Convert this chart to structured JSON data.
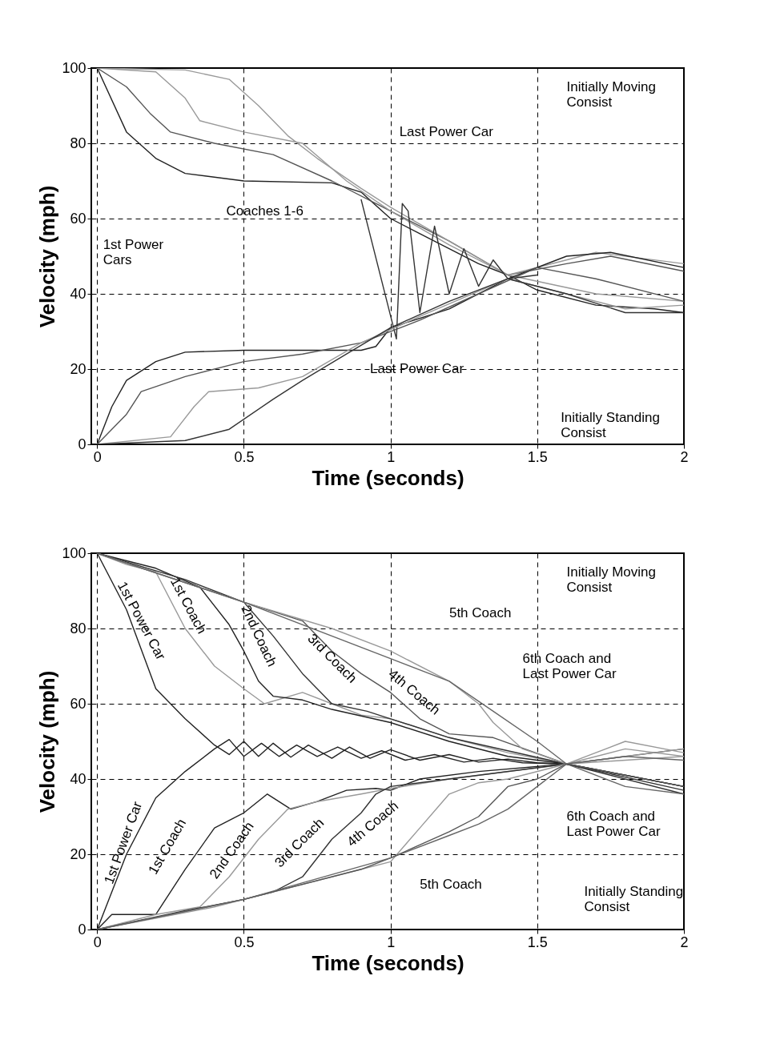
{
  "chart_data": [
    {
      "type": "line",
      "xlabel": "Time (seconds)",
      "ylabel": "Velocity (mph)",
      "xlim": [
        -0.02,
        2
      ],
      "ylim": [
        0,
        100
      ],
      "xticks": [
        0,
        0.5,
        1,
        1.5,
        2
      ],
      "yticks": [
        0,
        20,
        40,
        60,
        80,
        100
      ],
      "grid": true,
      "legend": false,
      "line_style": "solid",
      "marker": "none",
      "series": [
        {
          "color": "#222222",
          "x": [
            0,
            0.1,
            0.2,
            0.3,
            0.5,
            0.8,
            0.9,
            1.0,
            1.1,
            1.2,
            1.3,
            1.4,
            1.5,
            1.7,
            1.9,
            2
          ],
          "values": [
            100,
            83,
            76,
            72,
            70,
            69.5,
            67,
            60,
            56,
            52,
            48,
            45,
            41,
            37,
            36,
            35
          ]
        },
        {
          "color": "#555555",
          "x": [
            0,
            0.1,
            0.18,
            0.25,
            0.4,
            0.6,
            0.8,
            1.0,
            1.2,
            1.4,
            1.6,
            1.75,
            2
          ],
          "values": [
            100,
            95,
            88,
            83,
            80,
            77,
            70,
            62,
            54,
            45,
            48,
            50,
            46
          ]
        },
        {
          "color": "#999999",
          "x": [
            0,
            0.2,
            0.3,
            0.35,
            0.5,
            0.7,
            0.85,
            1.0,
            1.2,
            1.4,
            1.7,
            2
          ],
          "values": [
            100,
            99,
            92,
            86,
            83,
            80,
            70,
            62,
            53,
            45,
            40,
            38
          ]
        },
        {
          "color": "#999999",
          "x": [
            0,
            0.3,
            0.45,
            0.55,
            0.65,
            0.75,
            0.9,
            1.0,
            1.2,
            1.4,
            1.7,
            2
          ],
          "values": [
            100,
            99.5,
            97,
            90,
            82,
            76,
            68,
            63,
            54,
            45,
            51,
            48
          ]
        },
        {
          "color": "#333333",
          "x": [
            0.9,
            1.02,
            1.04,
            1.06,
            1.1,
            1.15,
            1.2,
            1.25,
            1.3,
            1.35,
            1.4,
            1.5
          ],
          "values": [
            65,
            28,
            64,
            62,
            35,
            58,
            40,
            52,
            42,
            49,
            44,
            45
          ]
        },
        {
          "color": "#222222",
          "x": [
            0,
            0.05,
            0.1,
            0.2,
            0.3,
            0.5,
            0.9,
            0.95,
            1.0,
            1.2,
            1.4,
            1.6,
            1.75,
            2
          ],
          "values": [
            0,
            10,
            17,
            22,
            24.5,
            25,
            25,
            26,
            31,
            36,
            44,
            50,
            51,
            47
          ]
        },
        {
          "color": "#555555",
          "x": [
            0,
            0.1,
            0.15,
            0.3,
            0.5,
            0.7,
            0.9,
            1.1,
            1.3,
            1.5,
            1.7,
            2
          ],
          "values": [
            0,
            8,
            14,
            18,
            22,
            24,
            27,
            33,
            40,
            47,
            44,
            38
          ]
        },
        {
          "color": "#999999",
          "x": [
            0,
            0.25,
            0.33,
            0.38,
            0.55,
            0.7,
            0.9,
            1.1,
            1.4,
            1.6,
            1.8,
            2
          ],
          "values": [
            0,
            2,
            10,
            14,
            15,
            18,
            27,
            34,
            44,
            40,
            36,
            37
          ]
        },
        {
          "color": "#333333",
          "x": [
            0,
            0.3,
            0.45,
            0.6,
            0.7,
            0.85,
            1.0,
            1.2,
            1.4,
            1.6,
            1.8,
            2
          ],
          "values": [
            0,
            1,
            4,
            12,
            17,
            24,
            31,
            38,
            44,
            40,
            35,
            35
          ]
        }
      ],
      "annotations": [
        "Initially Moving\nConsist",
        "Last Power Car",
        "Coaches 1-6",
        "1st Power\nCars",
        "Last Power Car",
        "Initially Standing\nConsist"
      ]
    },
    {
      "type": "line",
      "xlabel": "Time (seconds)",
      "ylabel": "Velocity (mph)",
      "xlim": [
        -0.02,
        2
      ],
      "ylim": [
        0,
        100
      ],
      "xticks": [
        0,
        0.5,
        1,
        1.5,
        2
      ],
      "yticks": [
        0,
        20,
        40,
        60,
        80,
        100
      ],
      "grid": true,
      "legend": false,
      "line_style": "solid",
      "marker": "none",
      "series": [
        {
          "color": "#222222",
          "x": [
            0,
            0.1,
            0.2,
            0.3,
            0.4,
            0.45,
            0.5,
            0.55,
            0.6,
            0.66,
            0.72,
            0.8,
            0.86,
            0.93,
            1.0,
            1.1,
            1.2,
            1.3,
            1.4,
            1.5,
            1.6
          ],
          "values": [
            100,
            85,
            64,
            56,
            49,
            46.5,
            50,
            46,
            49.5,
            45.8,
            49,
            45.5,
            48.5,
            45.5,
            47.8,
            45,
            46.5,
            44.5,
            45.3,
            44.3,
            44
          ]
        },
        {
          "color": "#222222",
          "x": [
            0,
            0.1,
            0.2,
            0.3,
            0.4,
            0.45,
            0.5,
            0.56,
            0.62,
            0.68,
            0.75,
            0.82,
            0.9,
            0.97,
            1.05,
            1.15,
            1.25,
            1.35,
            1.45,
            1.6
          ],
          "values": [
            0,
            20,
            35,
            42,
            48,
            50.5,
            46,
            49.5,
            46,
            49,
            46,
            48.5,
            45.5,
            47.5,
            45,
            46.5,
            44.5,
            45.5,
            44.3,
            44
          ]
        },
        {
          "color": "#999999",
          "x": [
            0,
            0.1,
            0.2,
            0.3,
            0.4,
            0.5,
            0.57,
            0.7,
            0.8,
            0.9,
            1.0,
            1.2,
            1.4,
            1.6,
            1.8,
            2
          ],
          "values": [
            100,
            97,
            95,
            80,
            70,
            64,
            60,
            63,
            60,
            57,
            56,
            51,
            47,
            44,
            48,
            46
          ]
        },
        {
          "color": "#222222",
          "x": [
            0,
            0.2,
            0.35,
            0.45,
            0.5,
            0.55,
            0.6,
            0.7,
            0.8,
            1.0,
            1.2,
            1.4,
            1.6,
            1.8,
            2
          ],
          "values": [
            100,
            96,
            91,
            81,
            74,
            66,
            62,
            61,
            58.5,
            55,
            50,
            46,
            44,
            41,
            38
          ]
        },
        {
          "color": "#333333",
          "x": [
            0,
            0.3,
            0.5,
            0.6,
            0.7,
            0.8,
            0.92,
            1.0,
            1.2,
            1.6,
            2
          ],
          "values": [
            100,
            93,
            87,
            78,
            68,
            60,
            58,
            56,
            51,
            44,
            36
          ]
        },
        {
          "color": "#555555",
          "x": [
            0,
            0.5,
            0.7,
            0.8,
            0.9,
            1.0,
            1.1,
            1.2,
            1.35,
            1.6,
            2
          ],
          "values": [
            100,
            87,
            82,
            74,
            68,
            63,
            56,
            52,
            51,
            44,
            48
          ]
        },
        {
          "color": "#999999",
          "x": [
            0,
            0.5,
            0.8,
            1.0,
            1.2,
            1.3,
            1.35,
            1.45,
            1.6,
            1.8,
            2
          ],
          "values": [
            100,
            87,
            80,
            74,
            66,
            60,
            55,
            48,
            44,
            50,
            47
          ]
        },
        {
          "color": "#666666",
          "x": [
            0,
            0.5,
            1.0,
            1.2,
            1.35,
            1.5,
            1.6,
            1.8,
            2
          ],
          "values": [
            100,
            87,
            72,
            66,
            58,
            50,
            44,
            38,
            36
          ]
        },
        {
          "color": "#222222",
          "x": [
            0,
            0.05,
            0.2,
            0.3,
            0.4,
            0.5,
            0.58,
            0.66,
            0.75,
            0.85,
            0.95,
            1.0,
            1.1,
            1.3,
            1.6,
            1.8,
            2
          ],
          "values": [
            0,
            4,
            4,
            16,
            27,
            31,
            36,
            32,
            34,
            37,
            37.5,
            37,
            40,
            42,
            44,
            41,
            38
          ]
        },
        {
          "color": "#999999",
          "x": [
            0,
            0.2,
            0.35,
            0.45,
            0.55,
            0.65,
            0.75,
            0.9,
            1.0,
            1.2,
            1.6,
            2
          ],
          "values": [
            0,
            4,
            6,
            14,
            24,
            32,
            34,
            36,
            37.5,
            40,
            44,
            46
          ]
        },
        {
          "color": "#333333",
          "x": [
            0,
            0.3,
            0.5,
            0.6,
            0.7,
            0.8,
            0.9,
            0.95,
            1.0,
            1.2,
            1.6,
            2
          ],
          "values": [
            0,
            5,
            8,
            10,
            14,
            24,
            31,
            36,
            38,
            40,
            44,
            37
          ]
        },
        {
          "color": "#999999",
          "x": [
            0,
            0.4,
            0.7,
            0.9,
            1.0,
            1.1,
            1.2,
            1.3,
            1.4,
            1.6,
            2
          ],
          "values": [
            0,
            6,
            12,
            16,
            18,
            27,
            36,
            39,
            40,
            44,
            48
          ]
        },
        {
          "color": "#555555",
          "x": [
            0,
            0.5,
            0.9,
            1.0,
            1.2,
            1.3,
            1.4,
            1.5,
            1.6,
            2
          ],
          "values": [
            0,
            8,
            16,
            19,
            26,
            30,
            38,
            40,
            44,
            38
          ]
        },
        {
          "color": "#666666",
          "x": [
            0,
            0.5,
            1.0,
            1.2,
            1.3,
            1.4,
            1.5,
            1.6,
            1.8,
            2
          ],
          "values": [
            0,
            8,
            19,
            25,
            28,
            32,
            38,
            44,
            46,
            45
          ]
        }
      ],
      "annotations": [
        "Initially Moving\nConsist",
        "5th Coach",
        "6th Coach and\nLast Power Car",
        "1st Power Car",
        "1st Coach",
        "2nd Coach",
        "3rd Coach",
        "4th Coach",
        "1st Power Car",
        "1st Coach",
        "2nd Coach",
        "3rd Coach",
        "4th Coach",
        "5th Coach",
        "6th Coach and\nLast Power Car",
        "Initially Standing\nConsist"
      ]
    }
  ]
}
